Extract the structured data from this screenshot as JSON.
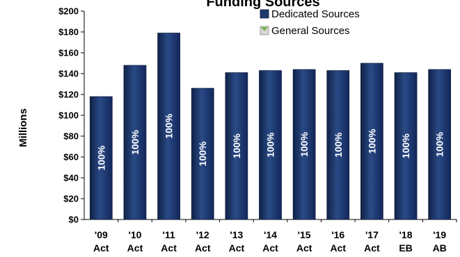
{
  "chart_data": {
    "type": "bar",
    "title": "Funding Sources",
    "ylabel": "Millions",
    "ylim": [
      0,
      200
    ],
    "yticks": [
      0,
      20,
      40,
      60,
      80,
      100,
      120,
      140,
      160,
      180,
      200
    ],
    "ytick_labels": [
      "$0",
      "$20",
      "$40",
      "$60",
      "$80",
      "$100",
      "$120",
      "$140",
      "$160",
      "$180",
      "$200"
    ],
    "categories": [
      [
        "'09",
        "Act"
      ],
      [
        "'10",
        "Act"
      ],
      [
        "'11",
        "Act"
      ],
      [
        "'12",
        "Act"
      ],
      [
        "'13",
        "Act"
      ],
      [
        "'14",
        "Act"
      ],
      [
        "'15",
        "Act"
      ],
      [
        "'16",
        "Act"
      ],
      [
        "'17",
        "Act"
      ],
      [
        "'18",
        "EB"
      ],
      [
        "'19",
        "AB"
      ]
    ],
    "series": [
      {
        "name": "Dedicated Sources",
        "color": "#1f3a6e",
        "values": [
          118,
          148,
          179,
          126,
          141,
          143,
          144,
          143,
          150,
          141,
          144
        ],
        "labels": [
          "100%",
          "100%",
          "100%",
          "100%",
          "100%",
          "100%",
          "100%",
          "100%",
          "100%",
          "100%",
          "100%"
        ]
      },
      {
        "name": "General Sources",
        "color": "#7ab648",
        "values": [
          0,
          0,
          0,
          0,
          0,
          0,
          0,
          0,
          0,
          0,
          0
        ]
      }
    ],
    "legend_position": "top-right",
    "grid": false
  }
}
